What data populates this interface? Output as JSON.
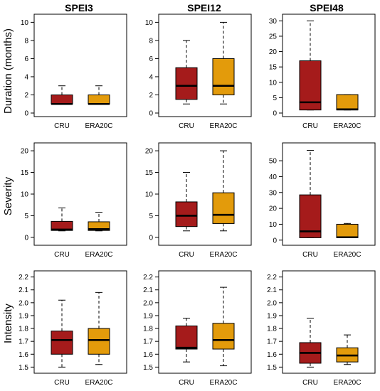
{
  "colors": {
    "cru": "#a51b1b",
    "era20c": "#e39b0b",
    "median": "#000000",
    "frame": "#000000"
  },
  "column_titles": [
    "SPEI3",
    "SPEI12",
    "SPEI48"
  ],
  "row_labels": [
    "Duration (months)",
    "Severity",
    "Intensity"
  ],
  "chart_data": [
    {
      "type": "box",
      "row": 0,
      "col": 0,
      "ylim": [
        0,
        10.5
      ],
      "yticks": [
        0,
        2,
        4,
        6,
        8,
        10
      ],
      "tick_labels": [
        "0",
        "2",
        "4",
        "6",
        "8",
        "10"
      ],
      "categories": [
        "CRU",
        "ERA20C"
      ],
      "boxes": [
        {
          "min": 1,
          "q1": 1,
          "median": 1,
          "q3": 2,
          "max": 3
        },
        {
          "min": 1,
          "q1": 1,
          "median": 1,
          "q3": 2,
          "max": 3
        }
      ]
    },
    {
      "type": "box",
      "row": 0,
      "col": 1,
      "ylim": [
        0,
        10.5
      ],
      "yticks": [
        0,
        2,
        4,
        6,
        8,
        10
      ],
      "tick_labels": [
        "0",
        "2",
        "4",
        "6",
        "8",
        "10"
      ],
      "categories": [
        "CRU",
        "ERA20C"
      ],
      "boxes": [
        {
          "min": 1,
          "q1": 1.5,
          "median": 3,
          "q3": 5,
          "max": 8
        },
        {
          "min": 1,
          "q1": 2,
          "median": 3,
          "q3": 6,
          "max": 10
        }
      ]
    },
    {
      "type": "box",
      "row": 0,
      "col": 2,
      "ylim": [
        0,
        31
      ],
      "yticks": [
        0,
        5,
        10,
        15,
        20,
        25,
        30
      ],
      "tick_labels": [
        "0",
        "5",
        "10",
        "15",
        "20",
        "25",
        "30"
      ],
      "categories": [
        "CRU",
        "ERA20C"
      ],
      "boxes": [
        {
          "min": 1,
          "q1": 1,
          "median": 3.5,
          "q3": 17,
          "max": 30
        },
        {
          "min": 1,
          "q1": 1,
          "median": 1.2,
          "q3": 6,
          "max": 6
        }
      ]
    },
    {
      "type": "box",
      "row": 1,
      "col": 0,
      "ylim": [
        -1,
        21
      ],
      "yticks": [
        0,
        5,
        10,
        15,
        20
      ],
      "tick_labels": [
        "0",
        "5",
        "10",
        "15",
        "20"
      ],
      "categories": [
        "CRU",
        "ERA20C"
      ],
      "boxes": [
        {
          "min": 1.5,
          "q1": 1.6,
          "median": 1.8,
          "q3": 3.7,
          "max": 6.8
        },
        {
          "min": 1.5,
          "q1": 1.6,
          "median": 1.9,
          "q3": 3.6,
          "max": 5.8
        }
      ]
    },
    {
      "type": "box",
      "row": 1,
      "col": 1,
      "ylim": [
        -1,
        21
      ],
      "yticks": [
        0,
        5,
        10,
        15,
        20
      ],
      "tick_labels": [
        "0",
        "5",
        "10",
        "15",
        "20"
      ],
      "categories": [
        "CRU",
        "ERA20C"
      ],
      "boxes": [
        {
          "min": 1.5,
          "q1": 2.5,
          "median": 5,
          "q3": 8.2,
          "max": 15
        },
        {
          "min": 1.5,
          "q1": 3.2,
          "median": 5.2,
          "q3": 10.3,
          "max": 20
        }
      ]
    },
    {
      "type": "box",
      "row": 1,
      "col": 2,
      "ylim": [
        -1,
        59
      ],
      "yticks": [
        0,
        10,
        20,
        30,
        40,
        50
      ],
      "tick_labels": [
        "0",
        "10",
        "20",
        "30",
        "40",
        "50"
      ],
      "categories": [
        "CRU",
        "ERA20C"
      ],
      "boxes": [
        {
          "min": 1.5,
          "q1": 1.5,
          "median": 5.5,
          "q3": 28.5,
          "max": 56.5
        },
        {
          "min": 1.5,
          "q1": 1.5,
          "median": 1.8,
          "q3": 10,
          "max": 10.5
        }
      ]
    },
    {
      "type": "box",
      "row": 2,
      "col": 0,
      "ylim": [
        1.48,
        2.22
      ],
      "yticks": [
        1.5,
        1.6,
        1.7,
        1.8,
        1.9,
        2.0,
        2.1,
        2.2
      ],
      "tick_labels": [
        "1.5",
        "1.6",
        "1.7",
        "1.8",
        "1.9",
        "2.0",
        "2.1",
        "2.2"
      ],
      "categories": [
        "CRU",
        "ERA20C"
      ],
      "boxes": [
        {
          "min": 1.5,
          "q1": 1.6,
          "median": 1.71,
          "q3": 1.78,
          "max": 2.02
        },
        {
          "min": 1.52,
          "q1": 1.6,
          "median": 1.71,
          "q3": 1.8,
          "max": 2.08
        }
      ]
    },
    {
      "type": "box",
      "row": 2,
      "col": 1,
      "ylim": [
        1.48,
        2.22
      ],
      "yticks": [
        1.5,
        1.6,
        1.7,
        1.8,
        1.9,
        2.0,
        2.1,
        2.2
      ],
      "tick_labels": [
        "1.5",
        "1.6",
        "1.7",
        "1.8",
        "1.9",
        "2.0",
        "2.1",
        "2.2"
      ],
      "categories": [
        "CRU",
        "ERA20C"
      ],
      "boxes": [
        {
          "min": 1.54,
          "q1": 1.64,
          "median": 1.65,
          "q3": 1.82,
          "max": 1.88
        },
        {
          "min": 1.51,
          "q1": 1.64,
          "median": 1.71,
          "q3": 1.84,
          "max": 2.12
        }
      ]
    },
    {
      "type": "box",
      "row": 2,
      "col": 2,
      "ylim": [
        1.48,
        2.22
      ],
      "yticks": [
        1.5,
        1.6,
        1.7,
        1.8,
        1.9,
        2.0,
        2.1,
        2.2
      ],
      "tick_labels": [
        "1.5",
        "1.6",
        "1.7",
        "1.8",
        "1.9",
        "2.0",
        "2.1",
        "2.2"
      ],
      "categories": [
        "CRU",
        "ERA20C"
      ],
      "boxes": [
        {
          "min": 1.5,
          "q1": 1.53,
          "median": 1.61,
          "q3": 1.69,
          "max": 1.88
        },
        {
          "min": 1.52,
          "q1": 1.54,
          "median": 1.59,
          "q3": 1.65,
          "max": 1.75
        }
      ]
    }
  ]
}
